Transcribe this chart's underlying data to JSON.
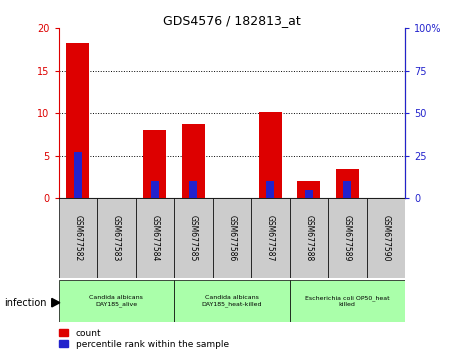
{
  "title": "GDS4576 / 182813_at",
  "samples": [
    "GSM677582",
    "GSM677583",
    "GSM677584",
    "GSM677585",
    "GSM677586",
    "GSM677587",
    "GSM677588",
    "GSM677589",
    "GSM677590"
  ],
  "count_values": [
    18.3,
    0,
    8.0,
    8.7,
    0,
    10.2,
    2.0,
    3.5,
    0
  ],
  "percentile_values": [
    27,
    0,
    10,
    10,
    0,
    10,
    5,
    10,
    0
  ],
  "left_ylim": [
    0,
    20
  ],
  "right_ylim": [
    0,
    100
  ],
  "left_yticks": [
    0,
    5,
    10,
    15,
    20
  ],
  "right_yticks": [
    0,
    25,
    50,
    75,
    100
  ],
  "right_yticklabels": [
    "0",
    "25",
    "50",
    "75",
    "100%"
  ],
  "bar_color_count": "#dd0000",
  "bar_color_percentile": "#2222cc",
  "groups": [
    {
      "label": "Candida albicans\nDAY185_alive",
      "start": 0,
      "end": 2,
      "color": "#aaffaa"
    },
    {
      "label": "Candida albicans\nDAY185_heat-killed",
      "start": 3,
      "end": 5,
      "color": "#aaffaa"
    },
    {
      "label": "Escherichia coli OP50_heat\nkilled",
      "start": 6,
      "end": 8,
      "color": "#aaffaa"
    }
  ],
  "infection_label": "infection",
  "legend_count_label": "count",
  "legend_percentile_label": "percentile rank within the sample",
  "grid_color": "black",
  "tick_area_color": "#cccccc",
  "bg_color": "white"
}
